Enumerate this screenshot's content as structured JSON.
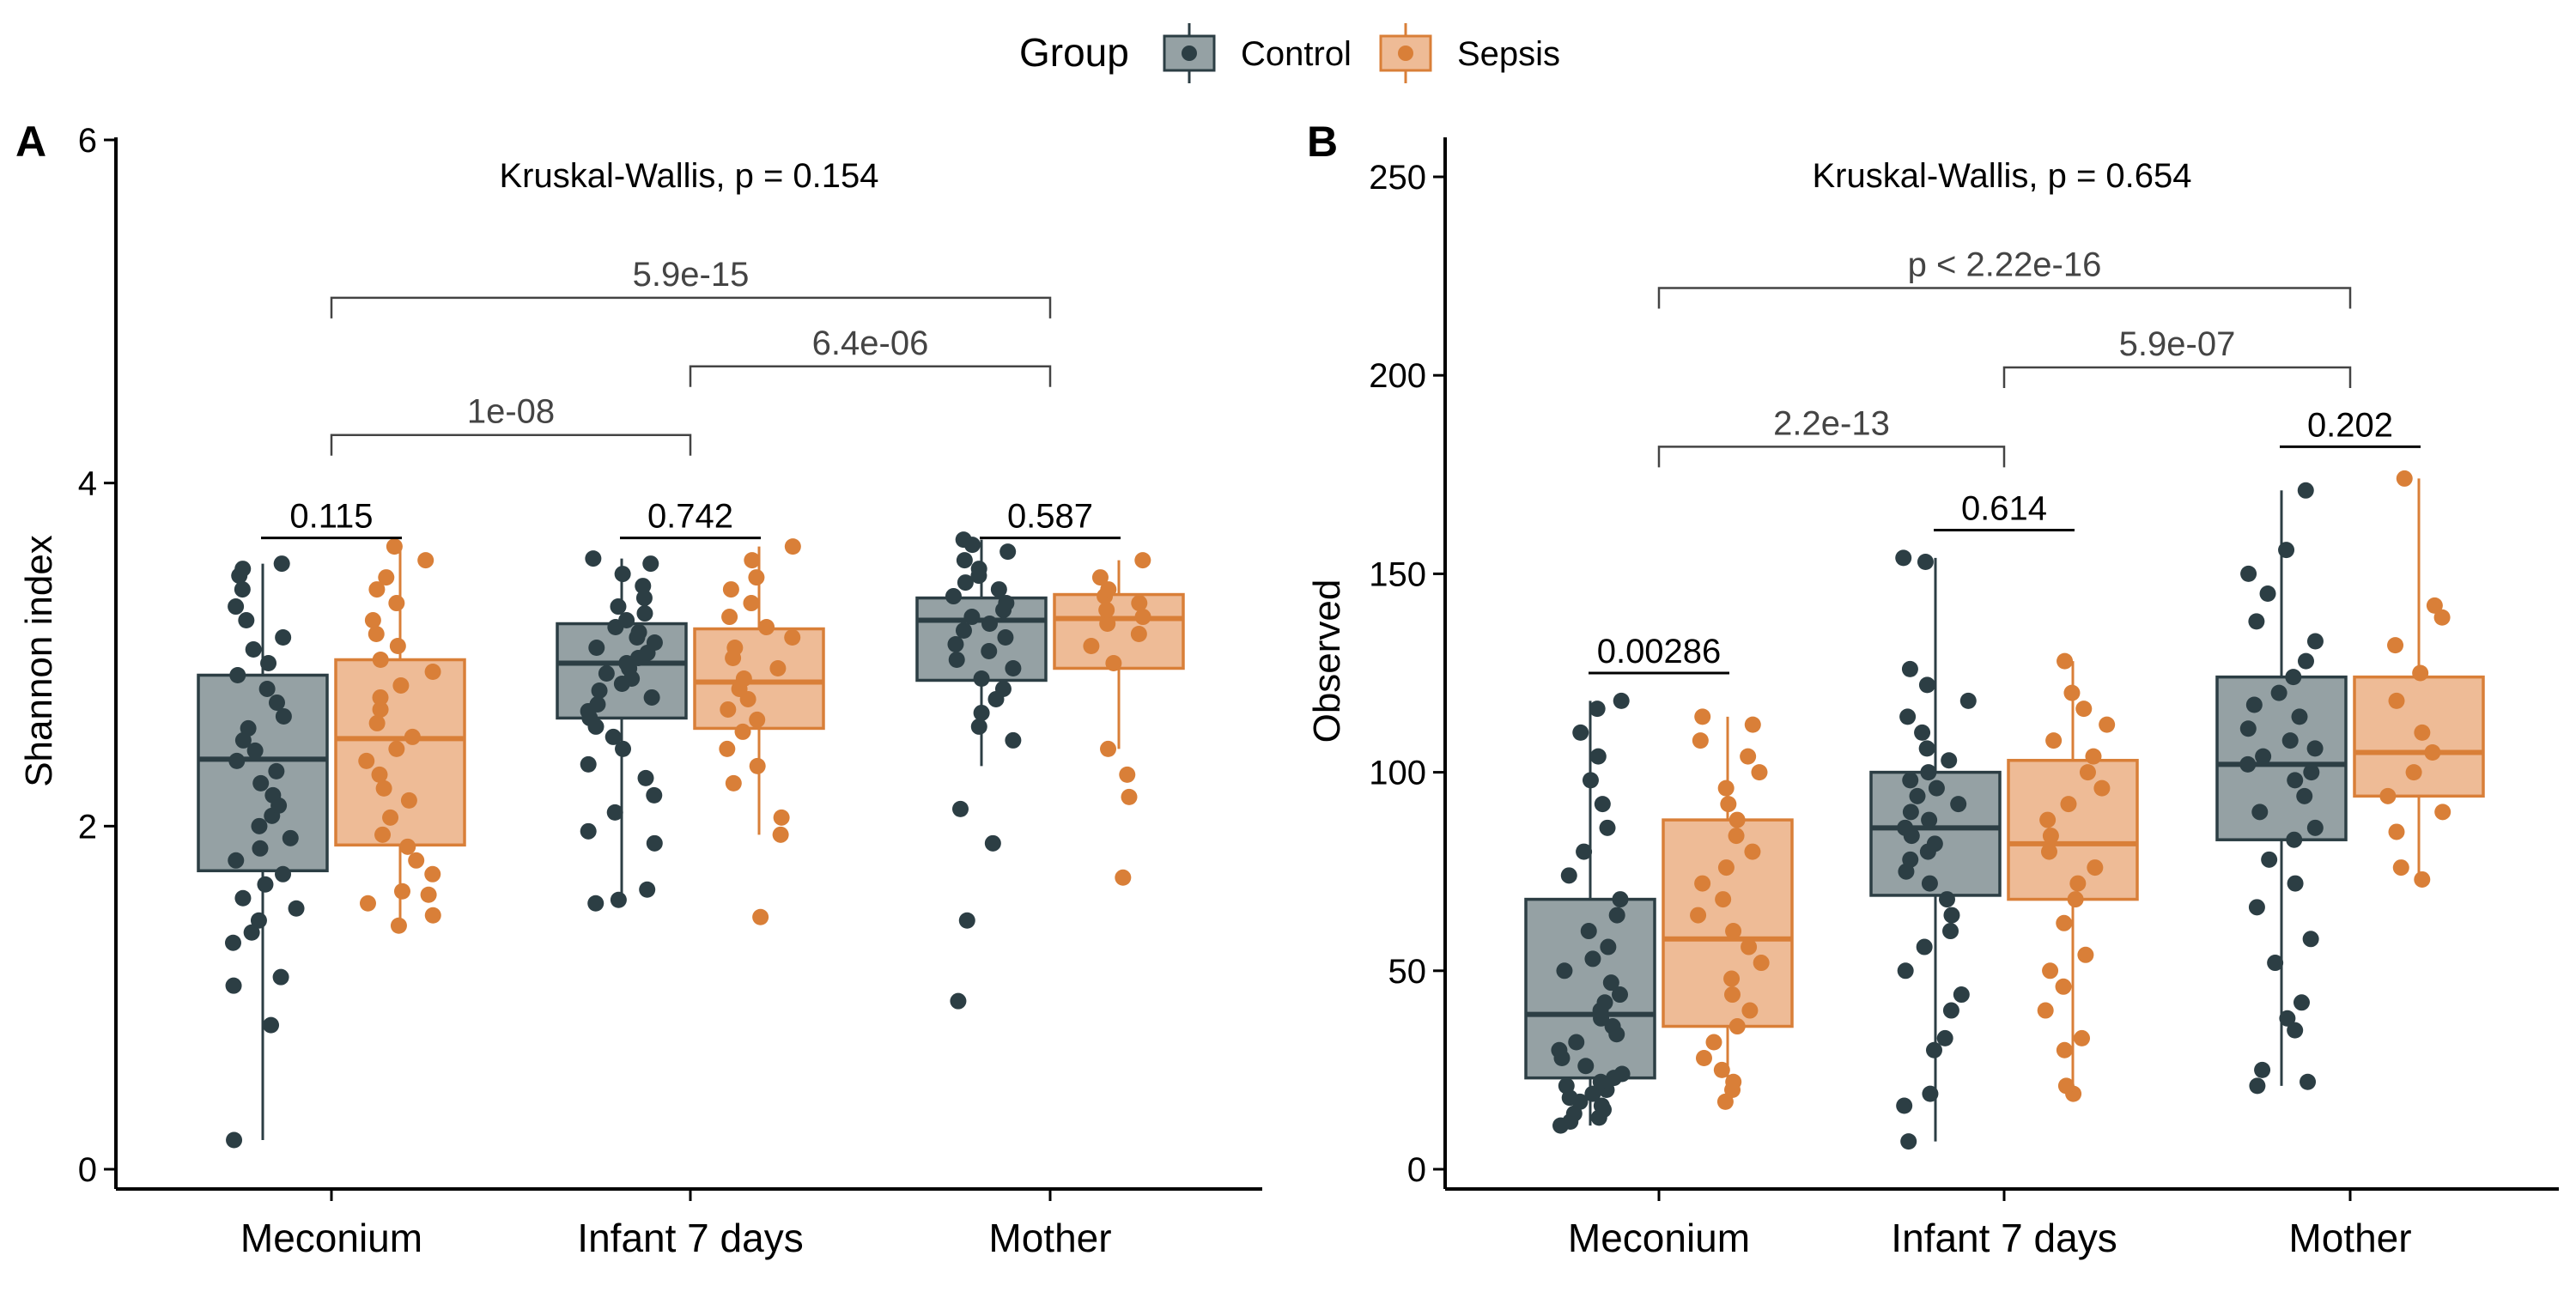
{
  "legend": {
    "title": "Group",
    "items": [
      {
        "label": "Control",
        "color": "#2c3e44",
        "fill": "#95a1a4"
      },
      {
        "label": "Sepsis",
        "color": "#d97f38",
        "fill": "#eebb96"
      }
    ]
  },
  "chart_data": [
    {
      "panel": "A",
      "type": "boxplot",
      "ylabel": "Shannon index",
      "ylim": [
        0,
        6
      ],
      "yticks": [
        0,
        2,
        4,
        6
      ],
      "categories": [
        "Meconium",
        "Infant 7 days",
        "Mother"
      ],
      "annotation": "Kruskal-Wallis, p = 0.154",
      "series": [
        {
          "name": "Control",
          "boxes": [
            {
              "min": 0.17,
              "q1": 1.74,
              "median": 2.39,
              "q3": 2.88,
              "max": 3.53
            },
            {
              "min": 1.55,
              "q1": 2.63,
              "median": 2.95,
              "q3": 3.18,
              "max": 3.56
            },
            {
              "min": 2.35,
              "q1": 2.85,
              "median": 3.2,
              "q3": 3.33,
              "max": 3.67
            }
          ],
          "points": [
            [
              0.17,
              0.84,
              1.07,
              1.12,
              1.32,
              1.38,
              1.45,
              1.52,
              1.58,
              1.66,
              1.72,
              1.8,
              1.87,
              1.93,
              2.0,
              2.06,
              2.12,
              2.18,
              2.25,
              2.32,
              2.38,
              2.44,
              2.5,
              2.57,
              2.64,
              2.72,
              2.8,
              2.88,
              2.95,
              3.03,
              3.1,
              3.2,
              3.28,
              3.38,
              3.46,
              3.5,
              3.53
            ],
            [
              1.55,
              1.57,
              1.63,
              1.9,
              1.97,
              2.08,
              2.18,
              2.28,
              2.36,
              2.45,
              2.52,
              2.58,
              2.63,
              2.67,
              2.71,
              2.75,
              2.79,
              2.83,
              2.86,
              2.89,
              2.92,
              2.95,
              2.98,
              3.01,
              3.04,
              3.07,
              3.1,
              3.13,
              3.16,
              3.2,
              3.24,
              3.28,
              3.33,
              3.4,
              3.47,
              3.53,
              3.56
            ],
            [
              0.98,
              1.45,
              1.9,
              2.1,
              2.5,
              2.58,
              2.66,
              2.74,
              2.8,
              2.86,
              2.92,
              2.97,
              3.02,
              3.06,
              3.1,
              3.14,
              3.18,
              3.22,
              3.26,
              3.3,
              3.34,
              3.38,
              3.42,
              3.46,
              3.5,
              3.55,
              3.6,
              3.64,
              3.67
            ]
          ]
        },
        {
          "name": "Sepsis",
          "boxes": [
            {
              "min": 1.42,
              "q1": 1.89,
              "median": 2.51,
              "q3": 2.97,
              "max": 3.63
            },
            {
              "min": 1.95,
              "q1": 2.57,
              "median": 2.84,
              "q3": 3.15,
              "max": 3.63
            },
            {
              "min": 2.45,
              "q1": 2.92,
              "median": 3.21,
              "q3": 3.35,
              "max": 3.55
            }
          ],
          "points": [
            [
              1.42,
              1.48,
              1.55,
              1.6,
              1.62,
              1.72,
              1.8,
              1.88,
              1.95,
              2.05,
              2.15,
              2.22,
              2.3,
              2.38,
              2.45,
              2.52,
              2.6,
              2.68,
              2.75,
              2.82,
              2.9,
              2.97,
              3.05,
              3.12,
              3.2,
              3.3,
              3.38,
              3.45,
              3.55,
              3.63
            ],
            [
              1.47,
              1.95,
              2.05,
              2.25,
              2.35,
              2.45,
              2.55,
              2.62,
              2.68,
              2.74,
              2.8,
              2.86,
              2.92,
              2.98,
              3.04,
              3.1,
              3.16,
              3.22,
              3.3,
              3.38,
              3.45,
              3.55,
              3.63
            ],
            [
              1.7,
              2.17,
              2.3,
              2.45,
              2.95,
              3.05,
              3.12,
              3.18,
              3.22,
              3.26,
              3.3,
              3.34,
              3.38,
              3.45,
              3.55
            ]
          ]
        }
      ],
      "comparisons": [
        {
          "kind": "within",
          "category": 0,
          "label": "0.115",
          "y": 3.68
        },
        {
          "kind": "within",
          "category": 1,
          "label": "0.742",
          "y": 3.68
        },
        {
          "kind": "within",
          "category": 2,
          "label": "0.587",
          "y": 3.68
        },
        {
          "kind": "between",
          "from": 0,
          "to": 1,
          "label": "1e-08",
          "y": 4.28
        },
        {
          "kind": "between",
          "from": 1,
          "to": 2,
          "label": "6.4e-06",
          "y": 4.68
        },
        {
          "kind": "between",
          "from": 0,
          "to": 2,
          "label": "5.9e-15",
          "y": 5.08
        }
      ]
    },
    {
      "panel": "B",
      "type": "boxplot",
      "ylabel": "Observed",
      "ylim": [
        0,
        250
      ],
      "yticks": [
        0,
        50,
        100,
        150,
        200,
        250
      ],
      "categories": [
        "Meconium",
        "Infant 7 days",
        "Mother"
      ],
      "annotation": "Kruskal-Wallis, p = 0.654",
      "series": [
        {
          "name": "Control",
          "boxes": [
            {
              "min": 11,
              "q1": 23,
              "median": 39,
              "q3": 68,
              "max": 118
            },
            {
              "min": 7,
              "q1": 69,
              "median": 86,
              "q3": 100,
              "max": 154
            },
            {
              "min": 21,
              "q1": 83,
              "median": 102,
              "q3": 124,
              "max": 171
            }
          ],
          "points": [
            [
              11,
              12,
              13,
              14,
              15,
              16,
              17,
              18,
              19,
              20,
              21,
              22,
              23,
              24,
              26,
              28,
              30,
              32,
              34,
              36,
              38,
              40,
              42,
              44,
              47,
              50,
              53,
              56,
              60,
              64,
              68,
              74,
              80,
              86,
              92,
              98,
              104,
              110,
              116,
              118
            ],
            [
              7,
              16,
              19,
              30,
              33,
              40,
              44,
              50,
              56,
              60,
              64,
              68,
              72,
              75,
              78,
              80,
              82,
              84,
              86,
              88,
              90,
              92,
              94,
              96,
              98,
              100,
              103,
              106,
              110,
              114,
              118,
              122,
              126,
              153,
              154
            ],
            [
              21,
              22,
              25,
              35,
              38,
              42,
              52,
              58,
              66,
              72,
              78,
              83,
              86,
              90,
              94,
              98,
              100,
              102,
              104,
              106,
              108,
              111,
              114,
              117,
              120,
              124,
              128,
              133,
              138,
              145,
              150,
              156,
              171
            ]
          ]
        },
        {
          "name": "Sepsis",
          "boxes": [
            {
              "min": 17,
              "q1": 36,
              "median": 58,
              "q3": 88,
              "max": 114
            },
            {
              "min": 19,
              "q1": 68,
              "median": 82,
              "q3": 103,
              "max": 128
            },
            {
              "min": 73,
              "q1": 94,
              "median": 105,
              "q3": 124,
              "max": 174
            }
          ],
          "points": [
            [
              17,
              20,
              22,
              25,
              28,
              32,
              36,
              40,
              44,
              48,
              52,
              56,
              60,
              64,
              68,
              72,
              76,
              80,
              84,
              88,
              92,
              96,
              100,
              104,
              108,
              112,
              114
            ],
            [
              19,
              21,
              30,
              33,
              40,
              46,
              50,
              54,
              62,
              68,
              72,
              76,
              80,
              84,
              88,
              92,
              96,
              100,
              104,
              108,
              112,
              116,
              120,
              128
            ],
            [
              73,
              76,
              85,
              90,
              94,
              100,
              105,
              110,
              118,
              125,
              132,
              139,
              142,
              174
            ]
          ]
        }
      ],
      "comparisons": [
        {
          "kind": "within",
          "category": 0,
          "label": "0.00286",
          "y": 125
        },
        {
          "kind": "within",
          "category": 1,
          "label": "0.614",
          "y": 161
        },
        {
          "kind": "within",
          "category": 2,
          "label": "0.202",
          "y": 182
        },
        {
          "kind": "between",
          "from": 0,
          "to": 1,
          "label": "2.2e-13",
          "y": 182
        },
        {
          "kind": "between",
          "from": 1,
          "to": 2,
          "label": "5.9e-07",
          "y": 202
        },
        {
          "kind": "between",
          "from": 0,
          "to": 2,
          "label": "p < 2.22e-16",
          "y": 222
        }
      ]
    }
  ]
}
